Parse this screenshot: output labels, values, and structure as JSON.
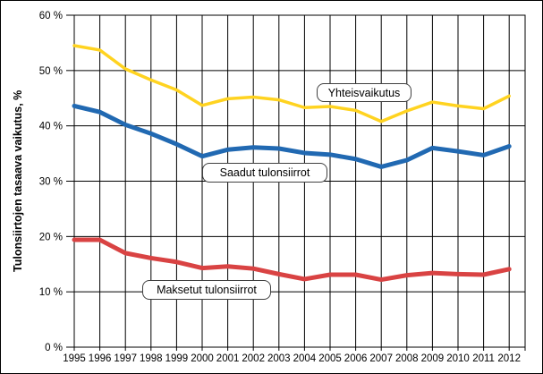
{
  "chart_data": {
    "type": "line",
    "title": "",
    "ylabel": "Tulonsiirtojen tasaava vaikutus, %",
    "xlabel": "",
    "ylim": [
      0,
      60
    ],
    "ytick_step": 10,
    "ytick_suffix": " %",
    "grid": true,
    "legend_position": "floating-boxes-on-plot",
    "axis_color": "#000000",
    "x": [
      1995,
      1996,
      1997,
      1998,
      1999,
      2000,
      2001,
      2002,
      2003,
      2004,
      2005,
      2006,
      2007,
      2008,
      2009,
      2010,
      2011,
      2012
    ],
    "series": [
      {
        "name": "Yhteisvaikutus",
        "color": "#FFD320",
        "line_width": 3.5,
        "values": [
          54.5,
          53.7,
          50.3,
          48.3,
          46.5,
          43.7,
          44.9,
          45.2,
          44.7,
          43.3,
          43.5,
          42.8,
          40.8,
          42.7,
          44.3,
          43.6,
          43.1,
          45.4
        ]
      },
      {
        "name": "Saadut tulonsiirrot",
        "color": "#2169B2",
        "line_width": 5,
        "values": [
          43.6,
          42.5,
          40.2,
          38.6,
          36.7,
          34.5,
          35.7,
          36.1,
          35.9,
          35.1,
          34.8,
          34.0,
          32.6,
          33.8,
          36.0,
          35.4,
          34.7,
          36.3
        ]
      },
      {
        "name": "Maksetut tulonsiirrot",
        "color": "#D94343",
        "line_width": 5,
        "values": [
          19.4,
          19.4,
          17.0,
          16.1,
          15.4,
          14.3,
          14.6,
          14.2,
          13.2,
          12.3,
          13.1,
          13.1,
          12.2,
          13.0,
          13.4,
          13.2,
          13.1,
          14.1
        ]
      }
    ]
  }
}
